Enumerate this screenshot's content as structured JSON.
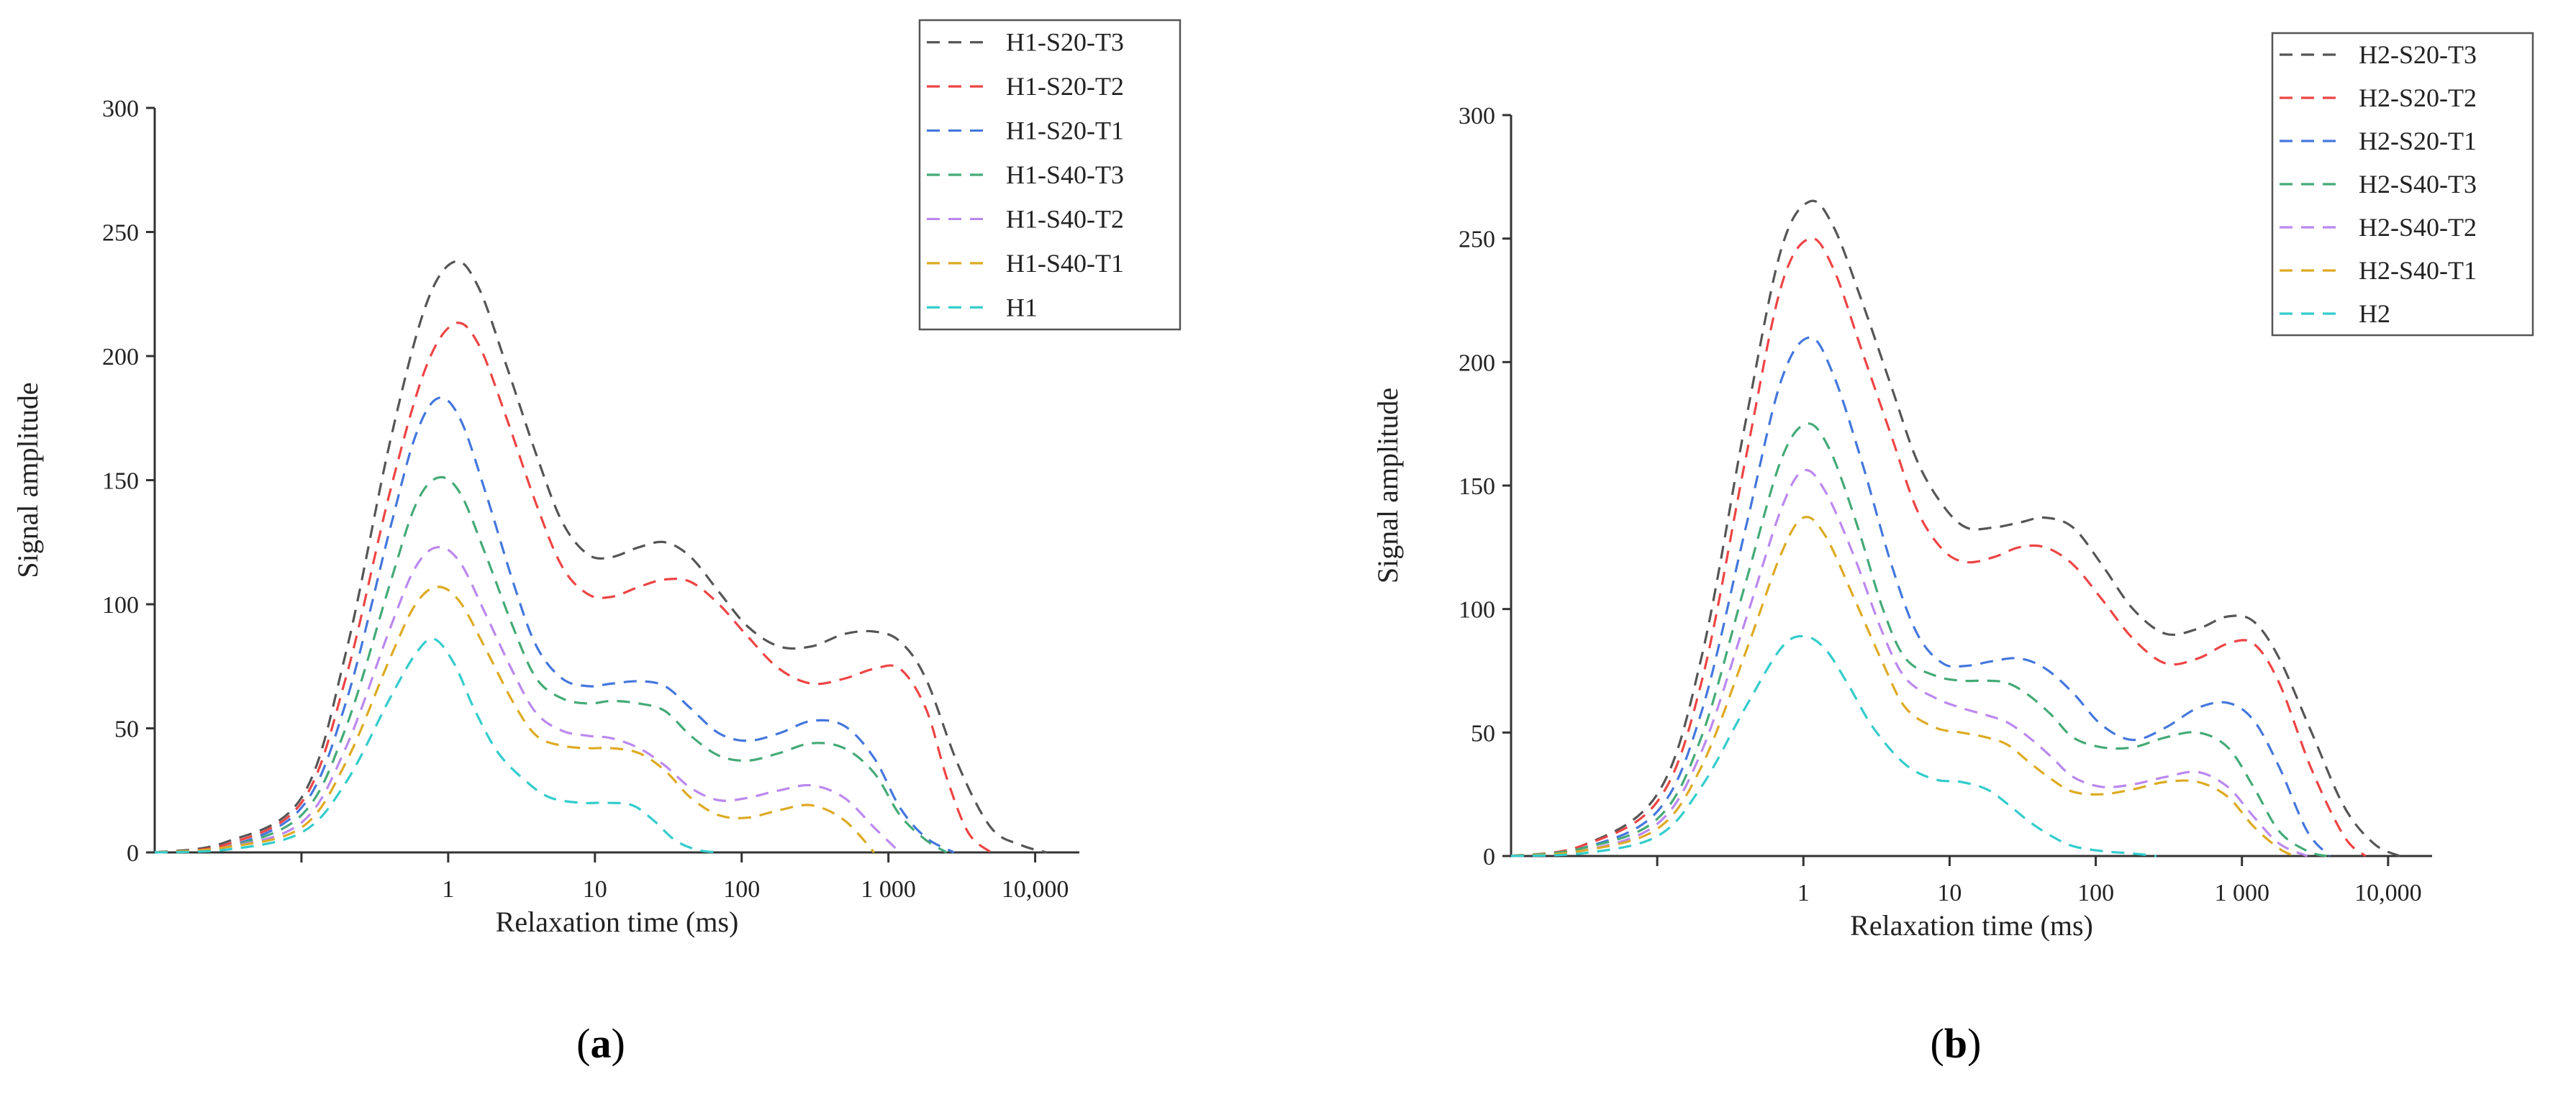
{
  "chart_data": [
    {
      "type": "line",
      "panel_label": "a",
      "title": "",
      "xlabel": "Relaxation time (ms)",
      "ylabel": "Signal amplitude",
      "xscale": "log",
      "xlim": [
        0.01,
        20000
      ],
      "ylim": [
        0,
        300
      ],
      "xticks": [
        {
          "value": 1,
          "label": "1"
        },
        {
          "value": 10,
          "label": "10"
        },
        {
          "value": 100,
          "label": "100"
        },
        {
          "value": 1000,
          "label": "1 000"
        },
        {
          "value": 10000,
          "label": "10,000"
        }
      ],
      "minor_xticks": [
        0.1
      ],
      "yticks": [
        {
          "value": 0,
          "label": "0"
        },
        {
          "value": 50,
          "label": "50"
        },
        {
          "value": 100,
          "label": "100"
        },
        {
          "value": 150,
          "label": "150"
        },
        {
          "value": 200,
          "label": "200"
        },
        {
          "value": 250,
          "label": "250"
        },
        {
          "value": 300,
          "label": "300"
        }
      ],
      "legend_position": "top-right",
      "series": [
        {
          "name": "H1-S20-T3",
          "color": "#555555",
          "x": [
            0.01,
            0.03,
            0.1,
            0.2,
            0.4,
            0.7,
            1.1,
            1.6,
            2.5,
            4,
            6,
            9,
            13,
            20,
            30,
            45,
            70,
            110,
            180,
            300,
            500,
            800,
            1200,
            1800,
            3000,
            5000,
            8000,
            12000
          ],
          "y": [
            0,
            4,
            22,
            80,
            165,
            220,
            238,
            228,
            196,
            160,
            133,
            120,
            119,
            123,
            125,
            119,
            105,
            91,
            83,
            83,
            88,
            89,
            85,
            70,
            35,
            10,
            3,
            0
          ]
        },
        {
          "name": "H1-S20-T2",
          "color": "#ee4444",
          "x": [
            0.01,
            0.03,
            0.1,
            0.2,
            0.4,
            0.7,
            1.1,
            1.6,
            2.5,
            4,
            6,
            9,
            13,
            20,
            30,
            45,
            70,
            110,
            180,
            300,
            500,
            800,
            1200,
            1800,
            2500,
            3500,
            5000
          ],
          "y": [
            0,
            3,
            20,
            70,
            145,
            195,
            213,
            205,
            175,
            140,
            115,
            104,
            103,
            107,
            110,
            109,
            100,
            87,
            74,
            68,
            70,
            74,
            74,
            58,
            30,
            8,
            0
          ]
        },
        {
          "name": "H1-S20-T1",
          "color": "#4477dd",
          "x": [
            0.01,
            0.03,
            0.1,
            0.2,
            0.4,
            0.6,
            0.85,
            1.2,
            1.8,
            2.8,
            4,
            6,
            9,
            13,
            20,
            30,
            45,
            70,
            110,
            180,
            300,
            500,
            800,
            1200,
            1800,
            2800
          ],
          "y": [
            0,
            2,
            18,
            60,
            130,
            168,
            183,
            175,
            145,
            108,
            83,
            70,
            67,
            68,
            69,
            67,
            58,
            48,
            45,
            48,
            53,
            51,
            38,
            18,
            6,
            0
          ]
        },
        {
          "name": "H1-S40-T3",
          "color": "#44aa77",
          "x": [
            0.01,
            0.03,
            0.1,
            0.2,
            0.4,
            0.6,
            0.85,
            1.2,
            1.8,
            2.8,
            4,
            6,
            9,
            13,
            20,
            30,
            45,
            70,
            110,
            180,
            300,
            500,
            800,
            1200,
            1800,
            2500
          ],
          "y": [
            0,
            2,
            15,
            50,
            108,
            140,
            151,
            145,
            120,
            90,
            70,
            62,
            60,
            61,
            60,
            57,
            47,
            39,
            37,
            40,
            44,
            42,
            32,
            15,
            5,
            0
          ]
        },
        {
          "name": "H1-S40-T2",
          "color": "#bb88ee",
          "x": [
            0.01,
            0.03,
            0.1,
            0.2,
            0.4,
            0.6,
            0.85,
            1.2,
            1.8,
            2.8,
            4,
            6,
            9,
            13,
            20,
            30,
            45,
            70,
            110,
            180,
            300,
            500,
            800,
            1200
          ],
          "y": [
            0,
            2,
            12,
            42,
            90,
            115,
            123,
            117,
            96,
            72,
            56,
            49,
            47,
            46,
            42,
            35,
            26,
            21,
            22,
            25,
            27,
            22,
            10,
            0
          ]
        },
        {
          "name": "H1-S40-T1",
          "color": "#ddaa22",
          "x": [
            0.01,
            0.03,
            0.1,
            0.2,
            0.4,
            0.6,
            0.85,
            1.2,
            1.8,
            2.8,
            4,
            6,
            9,
            13,
            20,
            30,
            45,
            70,
            110,
            180,
            300,
            500,
            800
          ],
          "y": [
            0,
            2,
            10,
            36,
            78,
            100,
            107,
            101,
            82,
            60,
            47,
            43,
            42,
            42,
            40,
            33,
            22,
            15,
            14,
            17,
            19,
            13,
            0
          ]
        },
        {
          "name": "H1",
          "color": "#33cccc",
          "x": [
            0.01,
            0.03,
            0.1,
            0.2,
            0.4,
            0.6,
            0.8,
            1.1,
            1.5,
            2.2,
            3.5,
            5,
            8,
            12,
            18,
            25,
            35,
            50,
            70
          ],
          "y": [
            0,
            1,
            8,
            28,
            62,
            80,
            86,
            76,
            58,
            40,
            28,
            22,
            20,
            20,
            19,
            13,
            5,
            1,
            0
          ]
        }
      ]
    },
    {
      "type": "line",
      "panel_label": "b",
      "title": "",
      "xlabel": "Relaxation time (ms)",
      "ylabel": "Signal amplitude",
      "xscale": "log",
      "xlim": [
        0.01,
        20000
      ],
      "ylim": [
        0,
        300
      ],
      "xticks": [
        {
          "value": 1,
          "label": "1"
        },
        {
          "value": 10,
          "label": "10"
        },
        {
          "value": 100,
          "label": "100"
        },
        {
          "value": 1000,
          "label": "1 000"
        },
        {
          "value": 10000,
          "label": "10,000"
        }
      ],
      "minor_xticks": [
        0.1
      ],
      "yticks": [
        {
          "value": 0,
          "label": "0"
        },
        {
          "value": 50,
          "label": "50"
        },
        {
          "value": 100,
          "label": "100"
        },
        {
          "value": 150,
          "label": "150"
        },
        {
          "value": 200,
          "label": "200"
        },
        {
          "value": 250,
          "label": "250"
        },
        {
          "value": 300,
          "label": "300"
        }
      ],
      "legend_position": "top-right",
      "series": [
        {
          "name": "H2-S20-T3",
          "color": "#555555",
          "x": [
            0.01,
            0.03,
            0.1,
            0.2,
            0.4,
            0.7,
            1.1,
            1.6,
            2.5,
            4,
            6,
            9,
            13,
            20,
            30,
            45,
            70,
            110,
            180,
            300,
            500,
            800,
            1200,
            1800,
            3000,
            5000,
            8000,
            12000
          ],
          "y": [
            0,
            4,
            25,
            80,
            175,
            245,
            265,
            255,
            225,
            190,
            160,
            142,
            133,
            133,
            135,
            137,
            133,
            118,
            100,
            90,
            92,
            97,
            95,
            80,
            50,
            20,
            5,
            0
          ]
        },
        {
          "name": "H2-S20-T2",
          "color": "#ee4444",
          "x": [
            0.01,
            0.03,
            0.1,
            0.2,
            0.4,
            0.7,
            1.1,
            1.6,
            2.5,
            4,
            6,
            9,
            13,
            20,
            30,
            45,
            70,
            110,
            180,
            300,
            500,
            800,
            1200,
            1800,
            3000,
            5000,
            7000
          ],
          "y": [
            0,
            4,
            22,
            70,
            160,
            230,
            250,
            238,
            205,
            170,
            140,
            124,
            119,
            121,
            125,
            125,
            118,
            104,
            88,
            78,
            80,
            86,
            86,
            70,
            35,
            8,
            0
          ]
        },
        {
          "name": "H2-S20-T1",
          "color": "#4477dd",
          "x": [
            0.01,
            0.03,
            0.1,
            0.2,
            0.4,
            0.7,
            1.1,
            1.6,
            2.5,
            4,
            6,
            9,
            13,
            20,
            30,
            45,
            70,
            110,
            180,
            300,
            500,
            800,
            1200,
            1800,
            2800,
            4000
          ],
          "y": [
            0,
            3,
            18,
            58,
            132,
            192,
            210,
            195,
            160,
            118,
            90,
            78,
            77,
            79,
            80,
            76,
            66,
            53,
            47,
            52,
            60,
            62,
            55,
            36,
            10,
            0
          ]
        },
        {
          "name": "H2-S40-T3",
          "color": "#44aa77",
          "x": [
            0.01,
            0.03,
            0.1,
            0.2,
            0.4,
            0.7,
            1.05,
            1.5,
            2.3,
            3.5,
            5,
            8,
            12,
            18,
            25,
            35,
            50,
            70,
            110,
            180,
            300,
            500,
            800,
            1200,
            1800,
            2800,
            3800
          ],
          "y": [
            0,
            3,
            15,
            48,
            110,
            160,
            175,
            165,
            135,
            100,
            80,
            73,
            71,
            71,
            70,
            65,
            57,
            48,
            44,
            44,
            48,
            50,
            44,
            28,
            10,
            2,
            0
          ]
        },
        {
          "name": "H2-S40-T2",
          "color": "#bb88ee",
          "x": [
            0.01,
            0.03,
            0.1,
            0.2,
            0.4,
            0.7,
            1.0,
            1.4,
            2.2,
            3.5,
            5,
            8,
            12,
            18,
            25,
            35,
            50,
            70,
            110,
            180,
            300,
            500,
            800,
            1200,
            1800,
            2800
          ],
          "y": [
            0,
            2,
            13,
            42,
            95,
            140,
            156,
            148,
            122,
            90,
            72,
            64,
            60,
            57,
            54,
            48,
            40,
            32,
            28,
            29,
            32,
            34,
            28,
            16,
            5,
            0
          ]
        },
        {
          "name": "H2-S40-T1",
          "color": "#ddaa22",
          "x": [
            0.01,
            0.03,
            0.1,
            0.2,
            0.4,
            0.7,
            1.0,
            1.4,
            2.2,
            3.5,
            5,
            8,
            12,
            18,
            25,
            35,
            50,
            70,
            110,
            180,
            300,
            500,
            800,
            1200,
            1800,
            2300
          ],
          "y": [
            0,
            2,
            11,
            36,
            82,
            122,
            137,
            130,
            105,
            78,
            60,
            52,
            50,
            48,
            45,
            38,
            31,
            26,
            25,
            27,
            30,
            30,
            24,
            12,
            3,
            0
          ]
        },
        {
          "name": "H2",
          "color": "#33cccc",
          "x": [
            0.01,
            0.03,
            0.1,
            0.2,
            0.4,
            0.7,
            1.0,
            1.4,
            2.0,
            3.0,
            5,
            8,
            12,
            18,
            25,
            35,
            50,
            70,
            110,
            180,
            260
          ],
          "y": [
            0,
            1,
            8,
            28,
            60,
            84,
            89,
            84,
            70,
            52,
            37,
            31,
            30,
            27,
            21,
            14,
            8,
            4,
            2,
            1,
            0
          ]
        }
      ]
    }
  ]
}
